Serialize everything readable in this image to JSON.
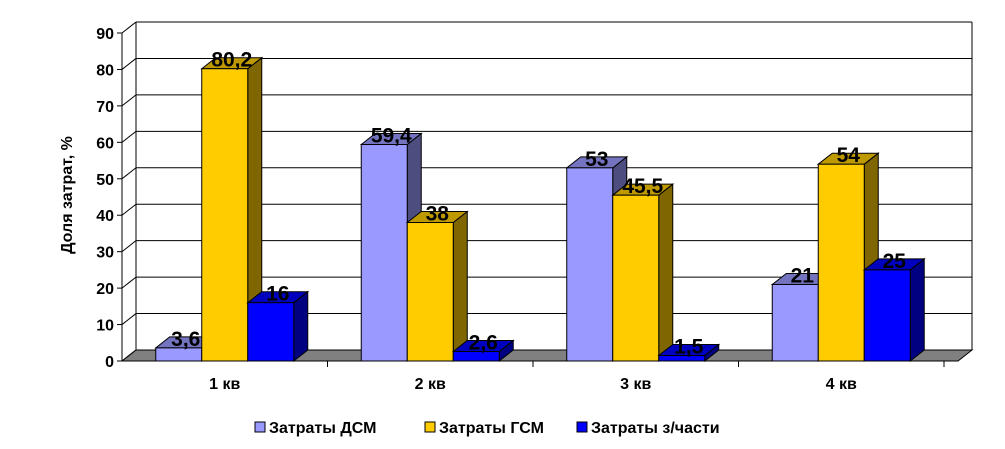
{
  "chart_data": {
    "type": "bar",
    "title": "",
    "xlabel": "",
    "ylabel": "Доля затрат, %",
    "ylim": [
      0,
      90
    ],
    "yticks": [
      "0",
      "10",
      "20",
      "30",
      "40",
      "50",
      "60",
      "70",
      "80",
      "90"
    ],
    "categories": [
      "1 кв",
      "2 кв",
      "3 кв",
      "4 кв"
    ],
    "series": [
      {
        "name": "Затраты ДСМ",
        "values": [
          3.6,
          59.4,
          53,
          21
        ],
        "labels": [
          "3,6",
          "59,4",
          "53",
          "21"
        ],
        "color": "#9999FF",
        "side": "#4D4D80",
        "top": "#7373BF"
      },
      {
        "name": "Затраты ГСМ",
        "values": [
          80.2,
          38,
          45.5,
          54
        ],
        "labels": [
          "80,2",
          "38",
          "45,5",
          "54"
        ],
        "color": "#FFCC00",
        "side": "#806600",
        "top": "#BF9900"
      },
      {
        "name": "Затраты з/части",
        "values": [
          16,
          2.6,
          1.5,
          25
        ],
        "labels": [
          "16",
          "2,6",
          "1,5",
          "25"
        ],
        "color": "#0000FF",
        "side": "#000080",
        "top": "#0000BF"
      }
    ],
    "grid": true,
    "legend": "bottom"
  }
}
